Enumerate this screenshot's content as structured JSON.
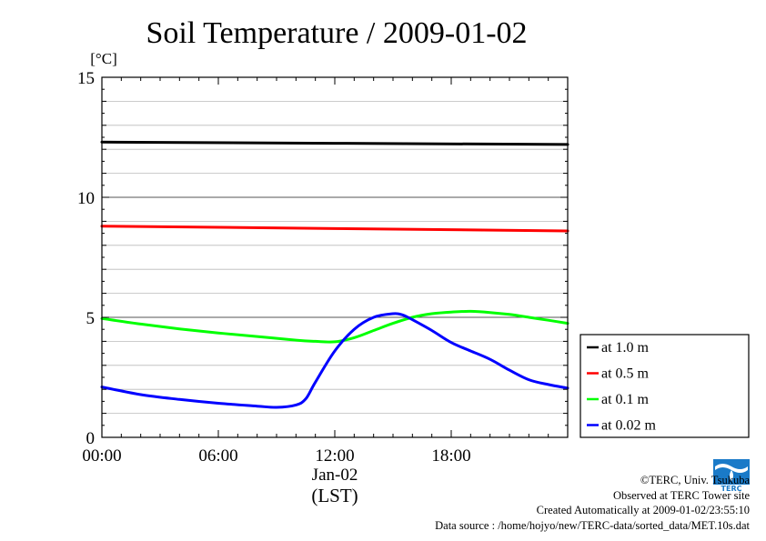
{
  "chart_data": {
    "type": "line",
    "title": "Soil Temperature / 2009-01-02",
    "ylabel": "[°C]",
    "ylim": [
      0,
      15
    ],
    "yticks": [
      "0",
      "5",
      "10",
      "15"
    ],
    "xlim": [
      0,
      24
    ],
    "xticks": [
      "00:00",
      "06:00",
      "12:00",
      "18:00"
    ],
    "xdate": "Jan-02",
    "xunit": "(LST)",
    "series": [
      {
        "name": "at 1.0 m",
        "color": "#000000",
        "x": [
          0,
          24
        ],
        "y": [
          12.3,
          12.2
        ]
      },
      {
        "name": "at 0.5 m",
        "color": "#ff0000",
        "x": [
          0,
          24
        ],
        "y": [
          8.8,
          8.6
        ]
      },
      {
        "name": "at 0.1 m",
        "color": "#00ff00",
        "x": [
          0,
          2,
          4,
          6,
          8,
          10,
          11,
          12,
          13,
          14,
          15,
          16,
          17,
          18,
          19,
          20,
          21,
          22,
          23,
          24
        ],
        "y": [
          4.95,
          4.72,
          4.52,
          4.35,
          4.2,
          4.05,
          4.0,
          3.98,
          4.15,
          4.45,
          4.75,
          5.0,
          5.15,
          5.22,
          5.25,
          5.2,
          5.12,
          5.0,
          4.88,
          4.75
        ]
      },
      {
        "name": "at 0.02 m",
        "color": "#0000ff",
        "x": [
          0,
          2,
          4,
          6,
          8,
          9,
          10,
          10.5,
          11,
          12,
          13,
          14,
          15,
          15.5,
          16,
          17,
          18,
          19,
          20,
          21,
          22,
          23,
          24
        ],
        "y": [
          2.1,
          1.78,
          1.58,
          1.42,
          1.3,
          1.25,
          1.35,
          1.6,
          2.3,
          3.6,
          4.5,
          5.0,
          5.15,
          5.1,
          4.9,
          4.45,
          3.95,
          3.6,
          3.25,
          2.8,
          2.4,
          2.2,
          2.05
        ]
      }
    ]
  },
  "footer": {
    "copyright": "©TERC, Univ. Tsukuba",
    "site": "Observed at TERC Tower site",
    "created": "Created Automatically at 2009-01-02/23:55:10",
    "source": "Data source : /home/hojyo/new/TERC-data/sorted_data/MET.10s.dat"
  },
  "logo": {
    "text": "TERC"
  }
}
